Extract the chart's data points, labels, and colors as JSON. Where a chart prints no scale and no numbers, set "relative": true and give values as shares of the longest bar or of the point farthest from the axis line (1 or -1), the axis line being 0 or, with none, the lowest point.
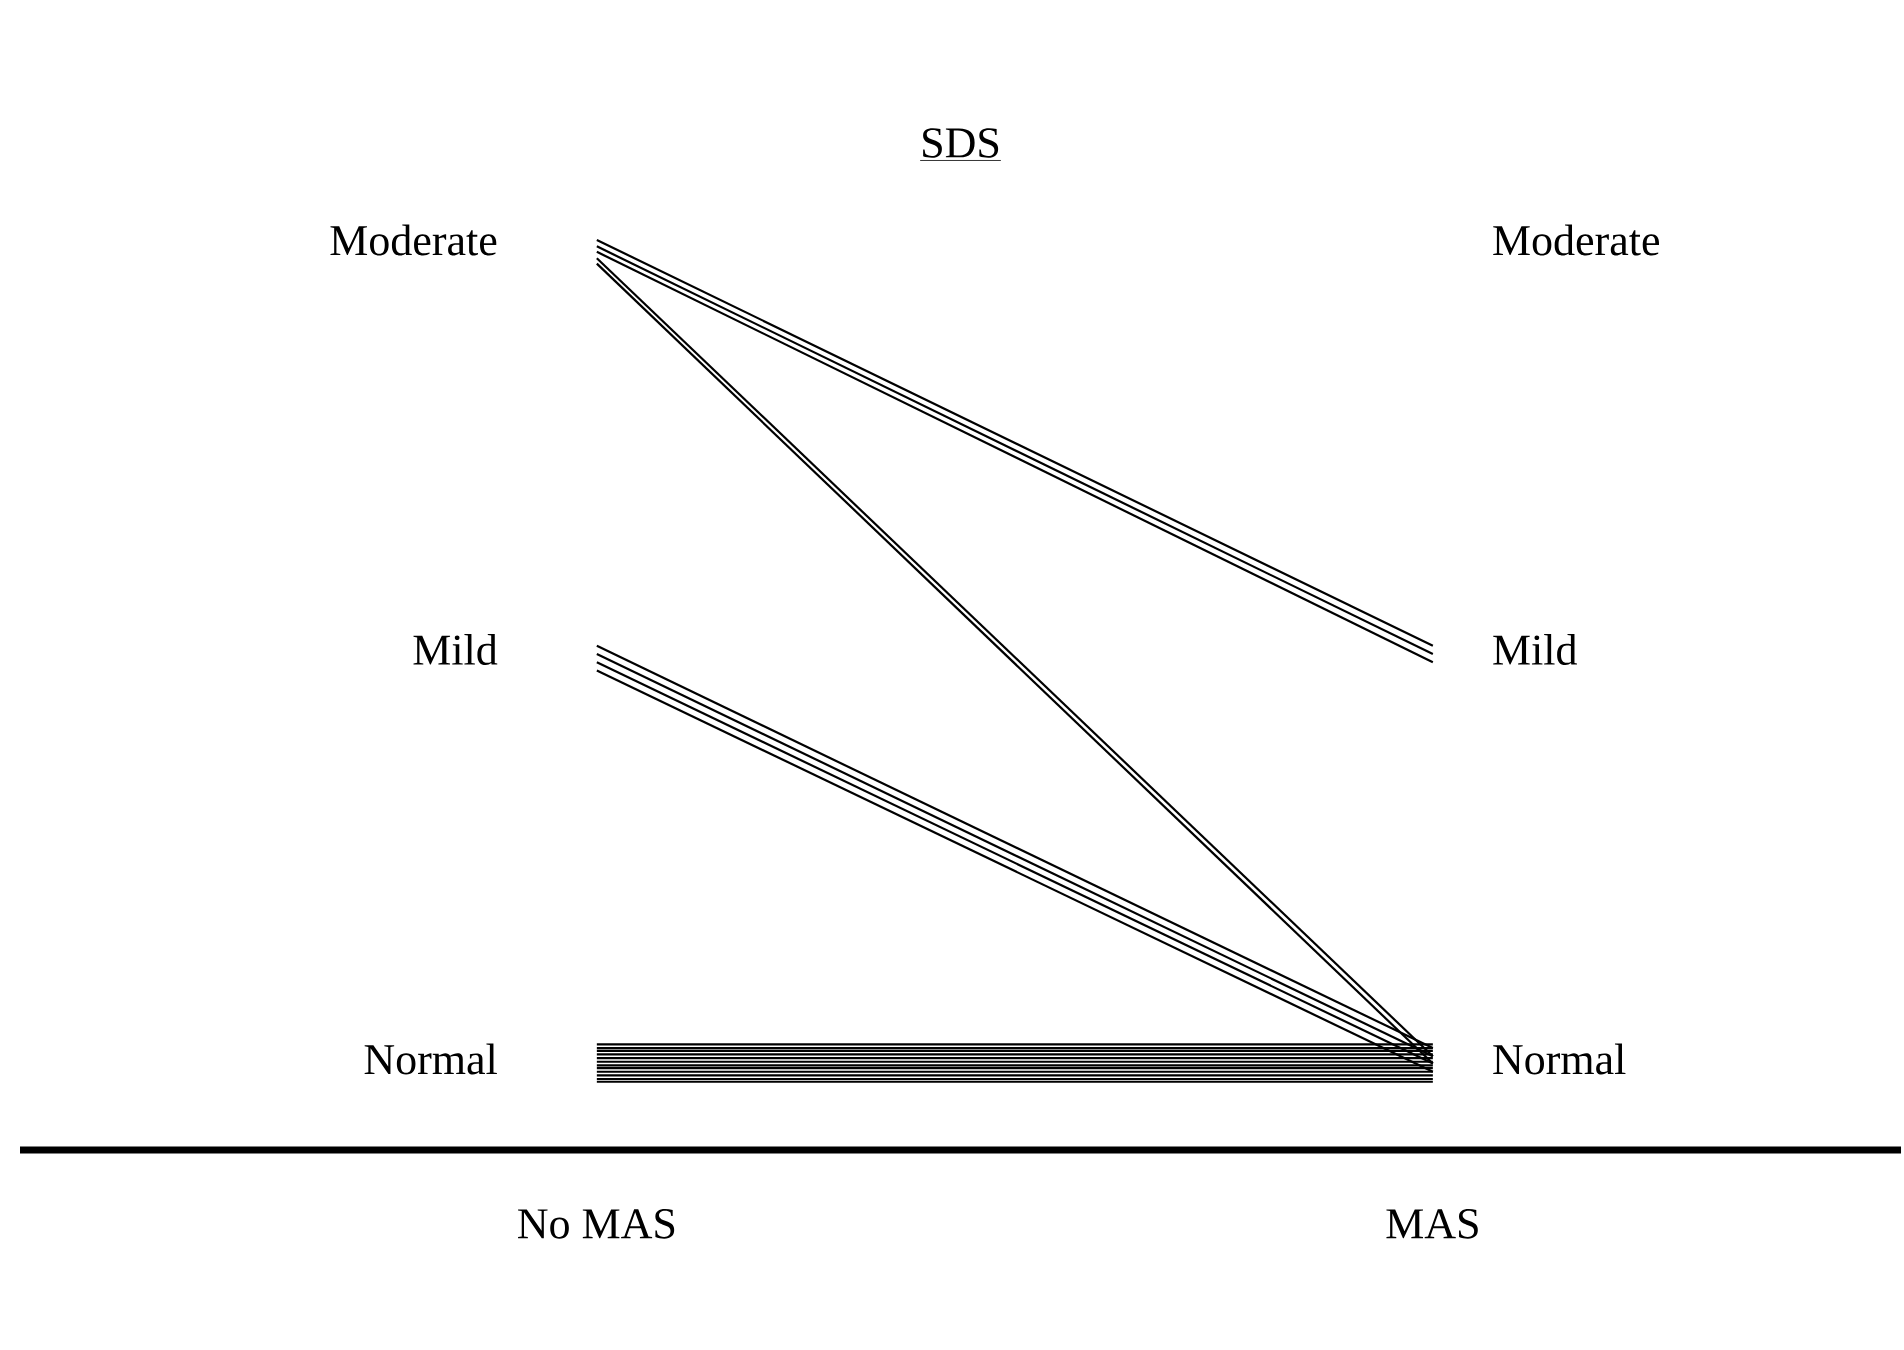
{
  "chart_data": {
    "type": "line",
    "title": "SDS",
    "categories": [
      "No MAS",
      "MAS"
    ],
    "relative": true,
    "annotations": [
      "Moderate",
      "Mild",
      "Normal",
      "Moderate",
      "Mild",
      "Normal"
    ],
    "series": [
      {
        "color": "#000000",
        "values": [
          1,
          0.554
        ]
      },
      {
        "color": "#000000",
        "values": [
          0.993,
          0.545
        ]
      },
      {
        "color": "#000000",
        "values": [
          0.987,
          0.536
        ]
      },
      {
        "color": "#000000",
        "values": [
          0.98,
          0.103
        ]
      },
      {
        "color": "#000000",
        "values": [
          0.974,
          0.095
        ]
      },
      {
        "color": "#000000",
        "values": [
          0.554,
          0.112
        ]
      },
      {
        "color": "#000000",
        "values": [
          0.545,
          0.103
        ]
      },
      {
        "color": "#000000",
        "values": [
          0.536,
          0.095
        ]
      },
      {
        "color": "#000000",
        "values": [
          0.527,
          0.086
        ]
      },
      {
        "color": "#000000",
        "values": [
          0.116,
          0.116
        ]
      },
      {
        "color": "#000000",
        "values": [
          0.112,
          0.112
        ]
      },
      {
        "color": "#000000",
        "values": [
          0.109,
          0.109
        ]
      },
      {
        "color": "#000000",
        "values": [
          0.105,
          0.105
        ]
      },
      {
        "color": "#000000",
        "values": [
          0.101,
          0.101
        ]
      },
      {
        "color": "#000000",
        "values": [
          0.097,
          0.097
        ]
      },
      {
        "color": "#000000",
        "values": [
          0.093,
          0.093
        ]
      },
      {
        "color": "#000000",
        "values": [
          0.09,
          0.09
        ]
      },
      {
        "color": "#000000",
        "values": [
          0.086,
          0.086
        ]
      },
      {
        "color": "#000000",
        "values": [
          0.082,
          0.082
        ]
      },
      {
        "color": "#000000",
        "values": [
          0.078,
          0.078
        ]
      },
      {
        "color": "#000000",
        "values": [
          0.075,
          0.075
        ]
      }
    ]
  }
}
